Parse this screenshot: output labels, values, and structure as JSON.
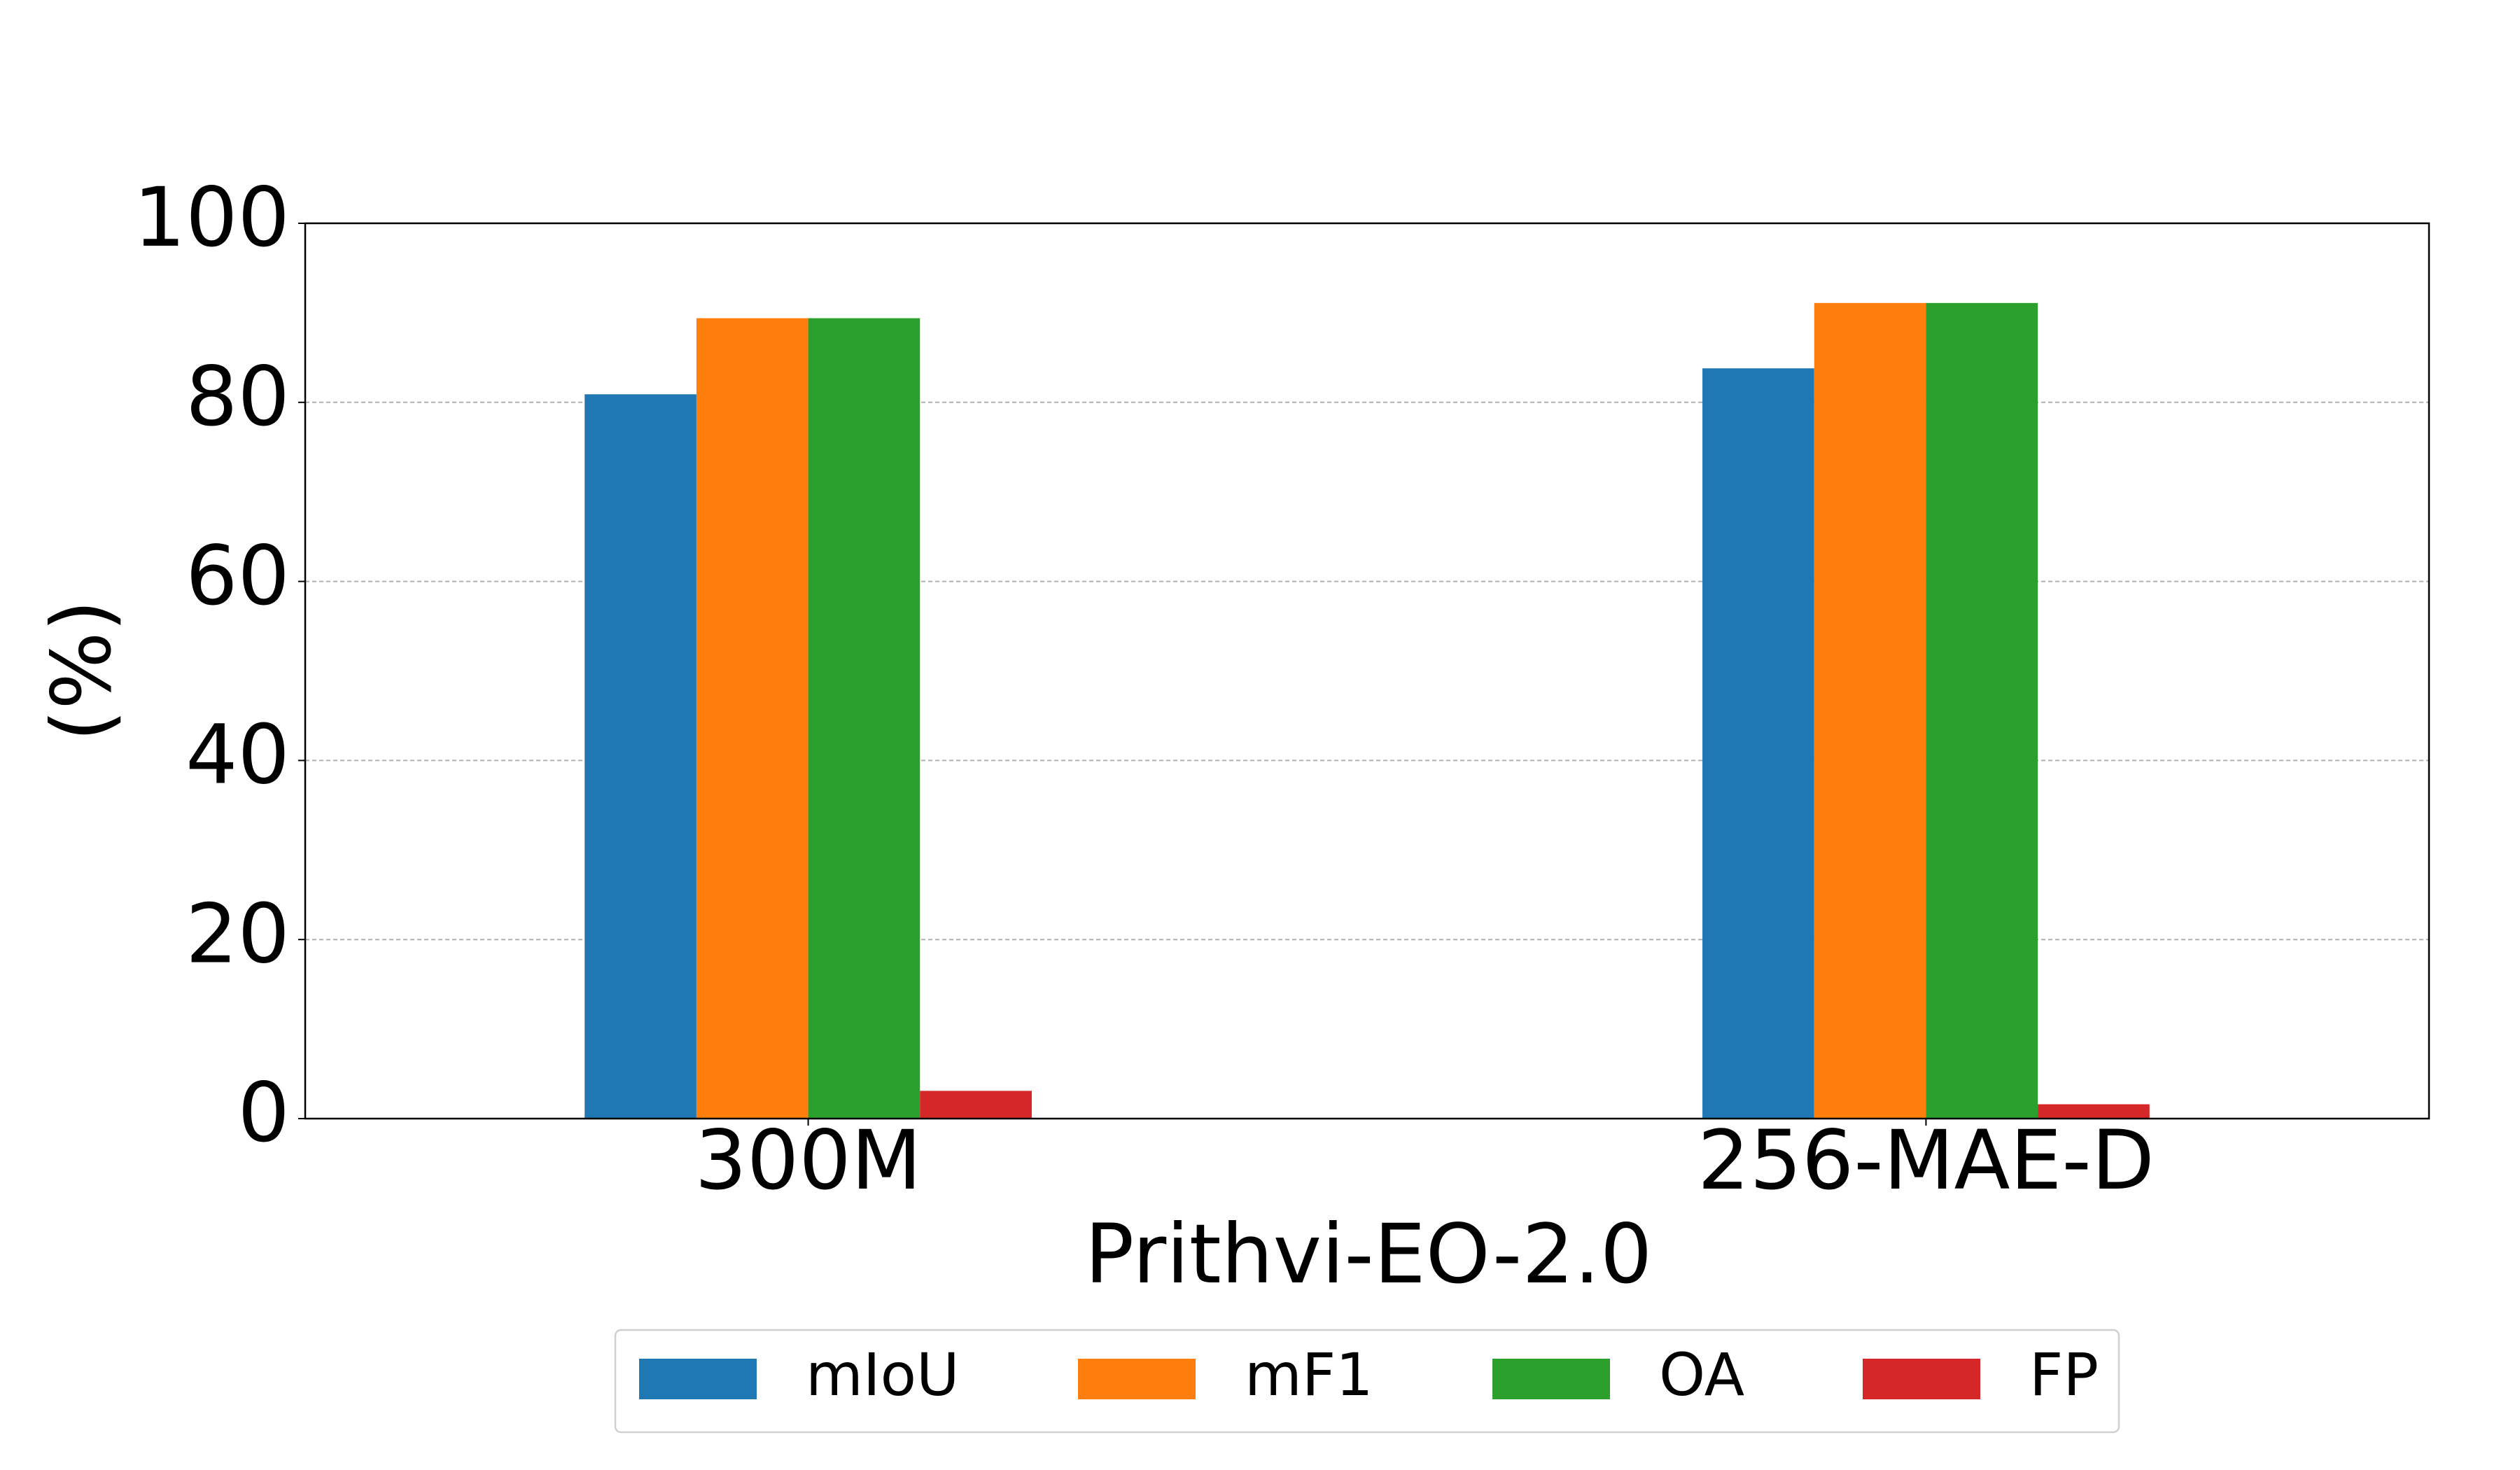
{
  "chart_data": {
    "type": "bar",
    "x_label": "Prithvi-EO-2.0",
    "y_label": "(%)",
    "categories": [
      "300M",
      "256-MAE-D"
    ],
    "series": [
      {
        "name": "mIoU",
        "color": "#1f77b4",
        "values": [
          80.9,
          83.8
        ]
      },
      {
        "name": "mF1",
        "color": "#ff7f0e",
        "values": [
          89.4,
          91.1
        ]
      },
      {
        "name": "OA",
        "color": "#2ca02c",
        "values": [
          89.4,
          91.1
        ]
      },
      {
        "name": "FP",
        "color": "#d62728",
        "values": [
          3.1,
          1.6
        ]
      }
    ],
    "ylim": [
      0,
      100
    ],
    "yticks": [
      0,
      20,
      40,
      60,
      80,
      100
    ],
    "grid": true,
    "legend": "lower center"
  }
}
